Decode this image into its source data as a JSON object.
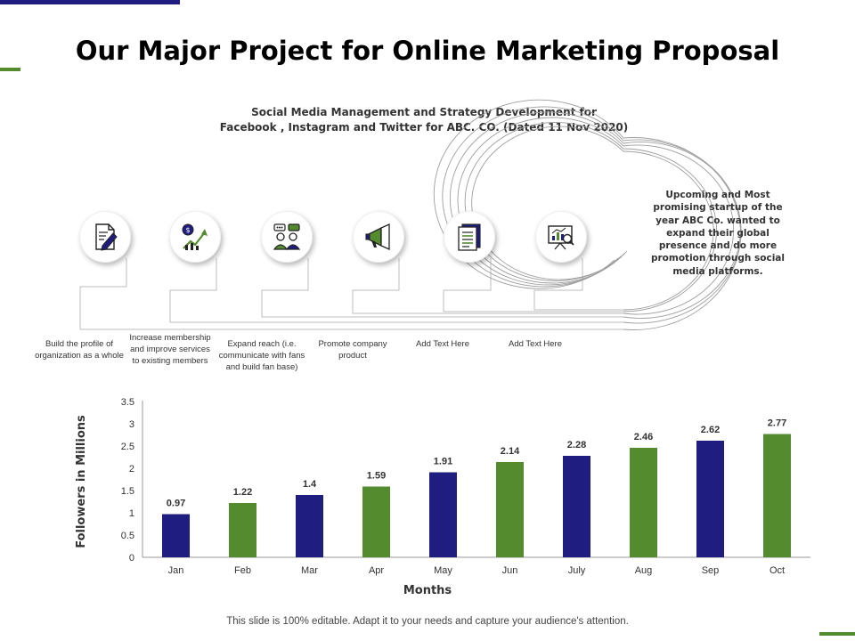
{
  "slide": {
    "title": "Our Major Project for Online Marketing Proposal",
    "subtitle_line1": "Social Media Management and Strategy Development for",
    "subtitle_line2": "Facebook , Instagram and Twitter for ABC. CO. (Dated 11 Nov 2020)",
    "callout_text": "Upcoming and Most promising startup of the year ABC Co. wanted to expand their global presence and do more promotion through social media platforms.",
    "footer": "This slide is 100% editable. Adapt it to your needs and capture your audience's attention."
  },
  "steps": [
    {
      "icon": "document-pen-icon",
      "label": "Build the profile of organization as a whole"
    },
    {
      "icon": "growth-chart-icon",
      "label": "Increase membership and improve services to existing members"
    },
    {
      "icon": "audience-chat-icon",
      "label": "Expand reach (i.e. communicate with fans and build fan base)"
    },
    {
      "icon": "megaphone-icon",
      "label": "Promote company product"
    },
    {
      "icon": "document-list-icon",
      "label": "Add Text Here"
    },
    {
      "icon": "presentation-analytics-icon",
      "label": "Add Text Here"
    }
  ],
  "colors": {
    "navy": "#1f1d7f",
    "green": "#558b2f",
    "text": "#333333"
  },
  "chart_data": {
    "type": "bar",
    "categories": [
      "Jan",
      "Feb",
      "Mar",
      "Apr",
      "May",
      "Jun",
      "July",
      "Aug",
      "Sep",
      "Oct"
    ],
    "values": [
      0.97,
      1.22,
      1.4,
      1.59,
      1.91,
      2.14,
      2.28,
      2.46,
      2.62,
      2.77
    ],
    "bar_colors": [
      "#1f1d7f",
      "#558b2f",
      "#1f1d7f",
      "#558b2f",
      "#1f1d7f",
      "#558b2f",
      "#1f1d7f",
      "#558b2f",
      "#1f1d7f",
      "#558b2f"
    ],
    "ylim": [
      0,
      3.5
    ],
    "yticks": [
      0,
      0.5,
      1,
      1.5,
      2,
      2.5,
      3,
      3.5
    ],
    "xlabel": "Months",
    "ylabel": "Followers in Millions",
    "data_labels": true,
    "grid": false
  }
}
